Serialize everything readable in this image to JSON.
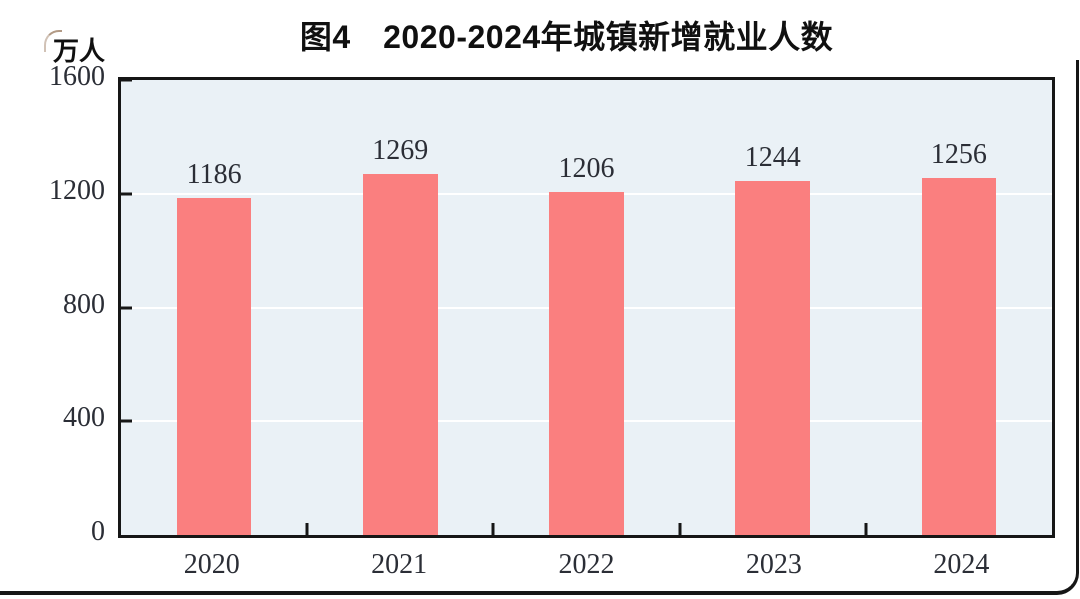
{
  "figure": {
    "title": "图4　2020-2024年城镇新增就业人数",
    "unit_label": "万人"
  },
  "chart_data": {
    "type": "bar",
    "title": "图4　2020-2024年城镇新增就业人数",
    "xlabel": "",
    "ylabel": "万人",
    "categories": [
      "2020",
      "2021",
      "2022",
      "2023",
      "2024"
    ],
    "values": [
      1186,
      1269,
      1206,
      1244,
      1256
    ],
    "ylim": [
      0,
      1600
    ],
    "yticks": [
      0,
      400,
      800,
      1200,
      1600
    ],
    "legend": "none",
    "grid": "horizontal white lines at y-ticks",
    "bar_color": "#FA7F7F",
    "plot_bg_color": "#EAF1F6",
    "grid_color": "#FFFFFF",
    "axis_color": "#161616",
    "label_color": "#2B2E36",
    "title_color": "#101010"
  }
}
